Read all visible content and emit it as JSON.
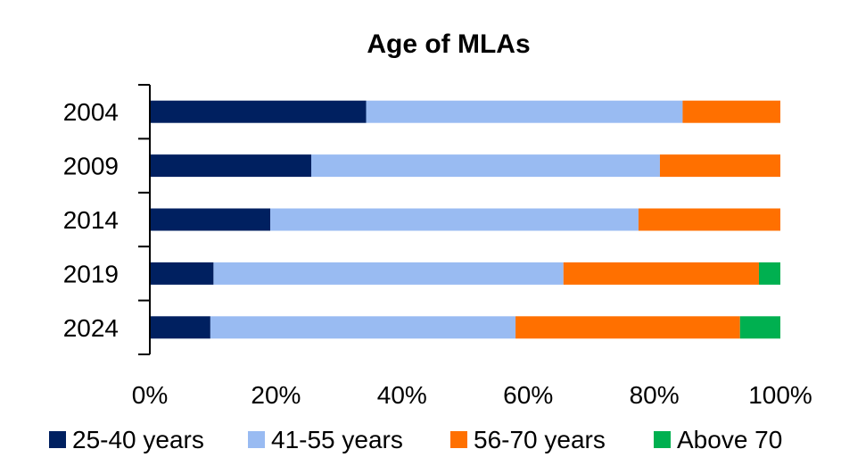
{
  "chart_data": {
    "type": "bar",
    "orientation": "horizontal",
    "stacked": true,
    "title": "Age of MLAs",
    "categories": [
      "2004",
      "2009",
      "2014",
      "2019",
      "2024"
    ],
    "series": [
      {
        "name": "25-40 years",
        "color": "#002060",
        "values": [
          34.3,
          25.6,
          19.1,
          10.1,
          9.6
        ]
      },
      {
        "name": "41-55 years",
        "color": "#99BBF2",
        "values": [
          50.2,
          55.3,
          58.4,
          55.5,
          48.4
        ]
      },
      {
        "name": "56-70 years",
        "color": "#FF7000",
        "values": [
          15.5,
          19.1,
          22.5,
          31.0,
          35.6
        ]
      },
      {
        "name": "Above 70",
        "color": "#00B050",
        "values": [
          0.0,
          0.0,
          0.0,
          3.4,
          6.4
        ]
      }
    ],
    "xlim": [
      0,
      100
    ],
    "xticks": [
      "0%",
      "20%",
      "40%",
      "60%",
      "80%",
      "100%"
    ],
    "xlabel": "",
    "ylabel": "",
    "legend": "bottom",
    "grid": false
  }
}
